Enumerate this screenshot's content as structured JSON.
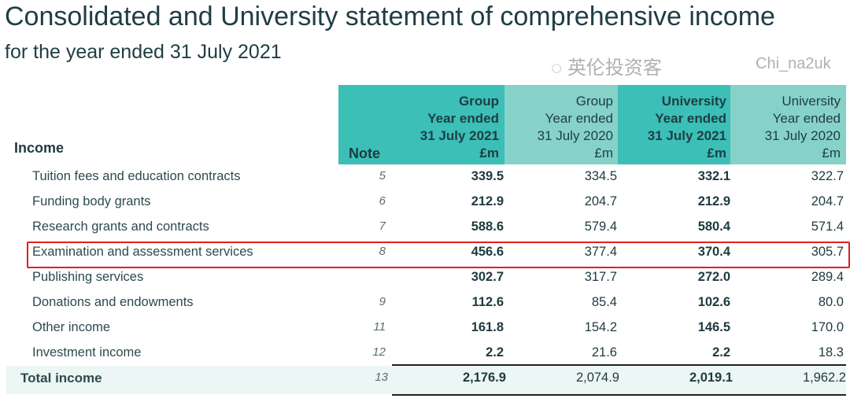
{
  "title": "Consolidated and University statement of comprehensive income",
  "subtitle": "for the year ended 31 July 2021",
  "section": "Income",
  "columns": {
    "note": "Note",
    "c1": [
      "Group",
      "Year ended",
      "31 July 2021",
      "£m"
    ],
    "c2": [
      "Group",
      "Year ended",
      "31 July 2020",
      "£m"
    ],
    "c3": [
      "University",
      "Year ended",
      "31 July 2021",
      "£m"
    ],
    "c4": [
      "University",
      "Year ended",
      "31 July 2020",
      "£m"
    ]
  },
  "rows": [
    {
      "label": "Tuition fees and education contracts",
      "note": "5",
      "v": [
        "339.5",
        "334.5",
        "332.1",
        "322.7"
      ]
    },
    {
      "label": "Funding body grants",
      "note": "6",
      "v": [
        "212.9",
        "204.7",
        "212.9",
        "204.7"
      ]
    },
    {
      "label": "Research grants and contracts",
      "note": "7",
      "v": [
        "588.6",
        "579.4",
        "580.4",
        "571.4"
      ]
    },
    {
      "label": "Examination and assessment services",
      "note": "8",
      "v": [
        "456.6",
        "377.4",
        "370.4",
        "305.7"
      ]
    },
    {
      "label": "Publishing services",
      "note": "",
      "v": [
        "302.7",
        "317.7",
        "272.0",
        "289.4"
      ]
    },
    {
      "label": "Donations and endowments",
      "note": "9",
      "v": [
        "112.6",
        "85.4",
        "102.6",
        "80.0"
      ]
    },
    {
      "label": "Other income",
      "note": "11",
      "v": [
        "161.8",
        "154.2",
        "146.5",
        "170.0"
      ]
    },
    {
      "label": "Investment income",
      "note": "12",
      "v": [
        "2.2",
        "21.6",
        "2.2",
        "18.3"
      ]
    }
  ],
  "total": {
    "label": "Total income",
    "note": "13",
    "v": [
      "2,176.9",
      "2,074.9",
      "2,019.1",
      "1,962.2"
    ]
  },
  "watermark": {
    "cn": "英伦投资客",
    "id": "Chi_na2uk"
  },
  "colors": {
    "dark_teal": "#3bbfb7",
    "light_teal": "#86d2c8",
    "highlight": "#e02020"
  }
}
